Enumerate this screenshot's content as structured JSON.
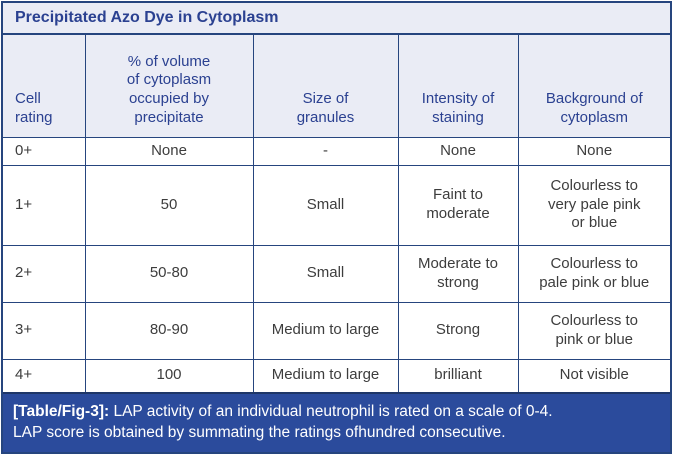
{
  "title": "Precipitated Azo Dye in Cytoplasm",
  "colors": {
    "border": "#26457E",
    "header_bg": "#EAECF5",
    "header_text": "#2B4191",
    "body_text": "#3D3D3D",
    "footer_bg": "#2B4B9C",
    "footer_text": "#FFFFFF"
  },
  "table": {
    "headers": [
      "Cell\nrating",
      "% of volume\nof cytoplasm\noccupied by\nprecipitate",
      "Size of\ngranules",
      "Intensity of\nstaining",
      "Background of\ncytoplasm"
    ],
    "rows": [
      {
        "cells": [
          "0+",
          "None",
          "-",
          "None",
          "None"
        ]
      },
      {
        "cells": [
          "1+",
          "50",
          "Small",
          "Faint to\nmoderate",
          "Colourless to\nvery pale pink\nor blue"
        ]
      },
      {
        "cells": [
          "2+",
          "50-80",
          "Small",
          "Moderate to\nstrong",
          "Colourless to\npale pink or blue"
        ]
      },
      {
        "cells": [
          "3+",
          "80-90",
          "Medium to large",
          "Strong",
          "Colourless to\npink or blue"
        ]
      },
      {
        "cells": [
          "4+",
          "100",
          "Medium to large",
          "brilliant",
          "Not visible"
        ]
      }
    ]
  },
  "footer": {
    "label": "[Table/Fig-3]:",
    "line1": "LAP activity of an individual neutrophil is rated on a scale of 0-4.",
    "line2": "LAP score is obtained by summating the ratings ofhundred consecutive."
  }
}
